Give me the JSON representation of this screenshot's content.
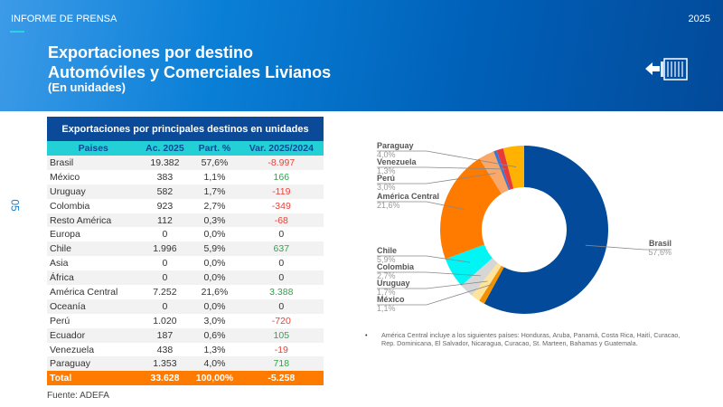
{
  "header": {
    "kicker": "INFORME DE PRENSA",
    "year": "2025",
    "title1": "Exportaciones por destino",
    "title2": "Automóviles y Comerciales Livianos",
    "subtitle": "(En unidades)",
    "icon": "container-export-icon"
  },
  "page_number": "05",
  "table": {
    "title": "Exportaciones por principales destinos en unidades",
    "columns": [
      "Paises",
      "Ac. 2025",
      "Part. %",
      "Var. 2025/2024"
    ],
    "rows": [
      [
        "Brasil",
        "19.382",
        "57,6%",
        "-8.997"
      ],
      [
        "México",
        "383",
        "1,1%",
        "166"
      ],
      [
        "Uruguay",
        "582",
        "1,7%",
        "-119"
      ],
      [
        "Colombia",
        "923",
        "2,7%",
        "-349"
      ],
      [
        "Resto América",
        "112",
        "0,3%",
        "-68"
      ],
      [
        "Europa",
        "0",
        "0,0%",
        "0"
      ],
      [
        "Chile",
        "1.996",
        "5,9%",
        "637"
      ],
      [
        "Asia",
        "0",
        "0,0%",
        "0"
      ],
      [
        "África",
        "0",
        "0,0%",
        "0"
      ],
      [
        "América Central",
        "7.252",
        "21,6%",
        "3.388"
      ],
      [
        "Oceanía",
        "0",
        "0,0%",
        "0"
      ],
      [
        "Perú",
        "1.020",
        "3,0%",
        "-720"
      ],
      [
        "Ecuador",
        "187",
        "0,6%",
        "105"
      ],
      [
        "Venezuela",
        "438",
        "1,3%",
        "-19"
      ],
      [
        "Paraguay",
        "1.353",
        "4,0%",
        "718"
      ]
    ],
    "total": [
      "Total",
      "33.628",
      "100,00%",
      "-5.258"
    ],
    "colors": {
      "title_bg": "#0b4a98",
      "header_bg": "#22d0d6",
      "total_bg": "#ff7b00",
      "negative": "#e8423a",
      "positive": "#2aa84a"
    }
  },
  "source": "Fuente: ADEFA",
  "chart_data": {
    "type": "pie",
    "donut": true,
    "slices": [
      {
        "name": "Brasil",
        "value": 57.6,
        "label": "57,6%",
        "color": "#034a9a"
      },
      {
        "name": "México",
        "value": 1.1,
        "label": "1,1%",
        "color": "#f39200"
      },
      {
        "name": "Uruguay",
        "value": 1.7,
        "label": "1,7%",
        "color": "#fde49a"
      },
      {
        "name": "Colombia",
        "value": 2.7,
        "label": "2,7%",
        "color": "#d6d6d6"
      },
      {
        "name": "Chile",
        "value": 5.9,
        "label": "5,9%",
        "color": "#00f5f5"
      },
      {
        "name": "América Central",
        "value": 21.6,
        "label": "21,6%",
        "color": "#ff7b00"
      },
      {
        "name": "Perú",
        "value": 3.0,
        "label": "3,0%",
        "color": "#f8a86a"
      },
      {
        "name": "",
        "value": 0.6,
        "label": "",
        "color": "#3a78d8"
      },
      {
        "name": "Venezuela",
        "value": 1.3,
        "label": "1,3%",
        "color": "#e83a3a"
      },
      {
        "name": "Paraguay",
        "value": 4.0,
        "label": "4,0%",
        "color": "#ffb300"
      }
    ]
  },
  "note": "América Central incluye a los siguientes países: Honduras, Aruba, Panamá,  Costa Rica, Haití, Curacao, Rep. Dominicana, El Salvador, Nicaragua, Curacao, St. Marteen, Bahamas y Guatemala."
}
